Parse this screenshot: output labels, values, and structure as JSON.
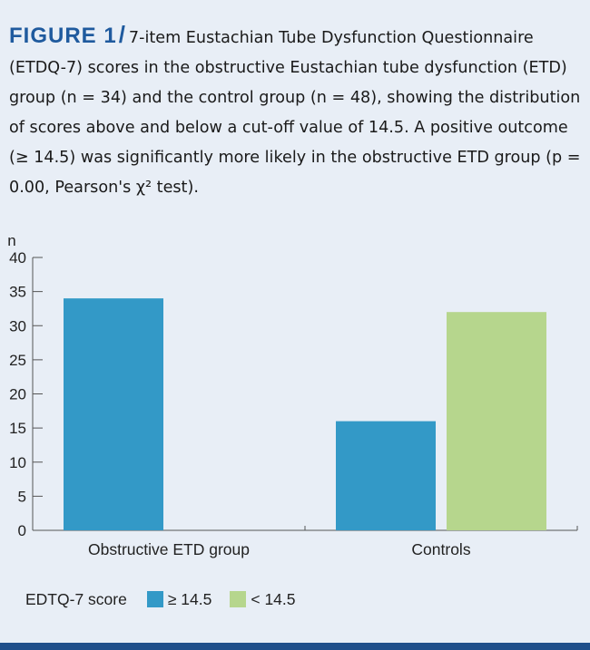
{
  "caption": {
    "figure_label": "FIGURE 1",
    "slash": "/",
    "text": "7-item Eustachian Tube Dysfunction Questionnaire (ETDQ-7) scores in the obstructive Eustachian tube dysfunction (ETD) group (n = 34) and the control group (n = 48), showing the distribution of scores above and below a cut-off value of 14.5. A positive outcome (≥ 14.5) was significantly more likely in the obstructive ETD group (p = 0.00, Pearson's χ² test)."
  },
  "chart_data": {
    "type": "bar",
    "ylabel": "n",
    "ylim": [
      0,
      40
    ],
    "yticks": [
      0,
      5,
      10,
      15,
      20,
      25,
      30,
      35,
      40
    ],
    "categories": [
      "Obstructive ETD group",
      "Controls"
    ],
    "series": [
      {
        "name": "≥ 14.5",
        "values": [
          34,
          16
        ],
        "color": "#3399c7"
      },
      {
        "name": "< 14.5",
        "values": [
          0,
          32
        ],
        "color": "#b6d68d"
      }
    ],
    "legend": {
      "title": "EDTQ-7 score",
      "position": "bottom-left"
    },
    "grid": false
  }
}
